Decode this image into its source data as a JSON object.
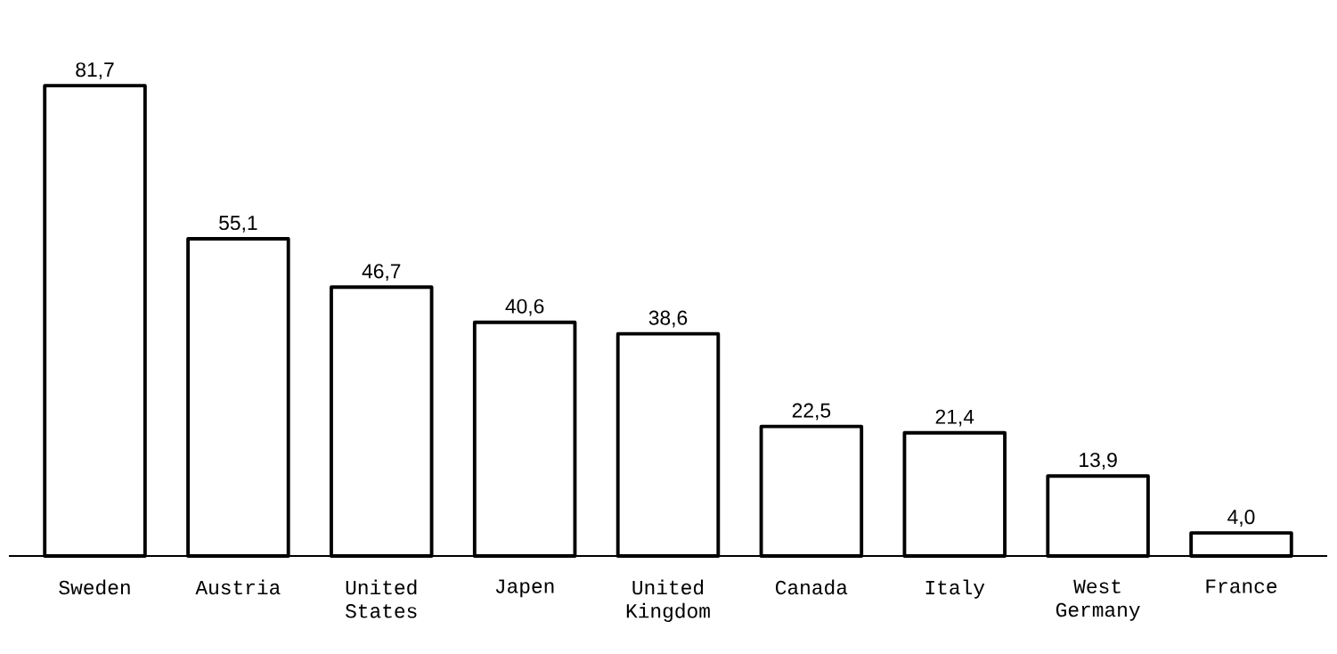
{
  "chart_data": {
    "type": "bar",
    "categories": [
      "Sweden",
      "Austria",
      "United States",
      "Japen",
      "United Kingdom",
      "Canada",
      "Italy",
      "West Germany",
      "France"
    ],
    "values": [
      81.7,
      55.1,
      46.7,
      40.6,
      38.6,
      22.5,
      21.4,
      13.9,
      4.0
    ],
    "value_labels": [
      "81,7",
      "55,1",
      "46,7",
      "40,6",
      "38,6",
      "22,5",
      "21,4",
      "13,9",
      "4,0"
    ],
    "color": "#000000"
  }
}
